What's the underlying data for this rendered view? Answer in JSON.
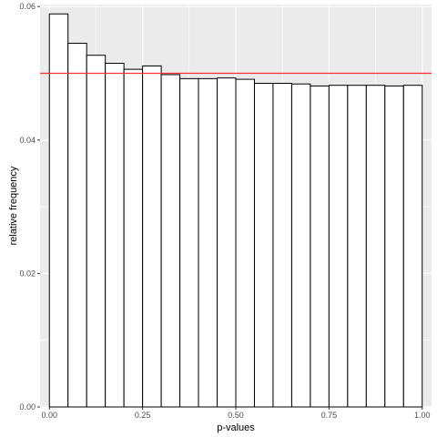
{
  "chart_data": {
    "type": "bar",
    "xlabel": "p-values",
    "ylabel": "relative frequency",
    "xlim": [
      -0.025,
      1.025
    ],
    "ylim": [
      0,
      0.0603
    ],
    "bin_width": 0.05,
    "x_ticks": [
      "0.00",
      "0.25",
      "0.50",
      "0.75",
      "1.00"
    ],
    "y_ticks": [
      "0.00",
      "0.02",
      "0.04",
      "0.06"
    ],
    "bins": [
      {
        "x": 0.025,
        "value": 0.0589
      },
      {
        "x": 0.075,
        "value": 0.0545
      },
      {
        "x": 0.125,
        "value": 0.0527
      },
      {
        "x": 0.175,
        "value": 0.0515
      },
      {
        "x": 0.225,
        "value": 0.0506
      },
      {
        "x": 0.275,
        "value": 0.0511
      },
      {
        "x": 0.325,
        "value": 0.0498
      },
      {
        "x": 0.375,
        "value": 0.0492
      },
      {
        "x": 0.425,
        "value": 0.0492
      },
      {
        "x": 0.475,
        "value": 0.0493
      },
      {
        "x": 0.525,
        "value": 0.0491
      },
      {
        "x": 0.575,
        "value": 0.0485
      },
      {
        "x": 0.625,
        "value": 0.0485
      },
      {
        "x": 0.675,
        "value": 0.0484
      },
      {
        "x": 0.725,
        "value": 0.0481
      },
      {
        "x": 0.775,
        "value": 0.0482
      },
      {
        "x": 0.825,
        "value": 0.0482
      },
      {
        "x": 0.875,
        "value": 0.0482
      },
      {
        "x": 0.925,
        "value": 0.0481
      },
      {
        "x": 0.975,
        "value": 0.0482
      }
    ],
    "reference_line": {
      "y": 0.05,
      "color": "#ff3333"
    },
    "grid": true,
    "colors": {
      "panel": "#ebebeb",
      "grid": "#ffffff",
      "bar_fill": "#ffffff",
      "bar_stroke": "#000000"
    }
  }
}
